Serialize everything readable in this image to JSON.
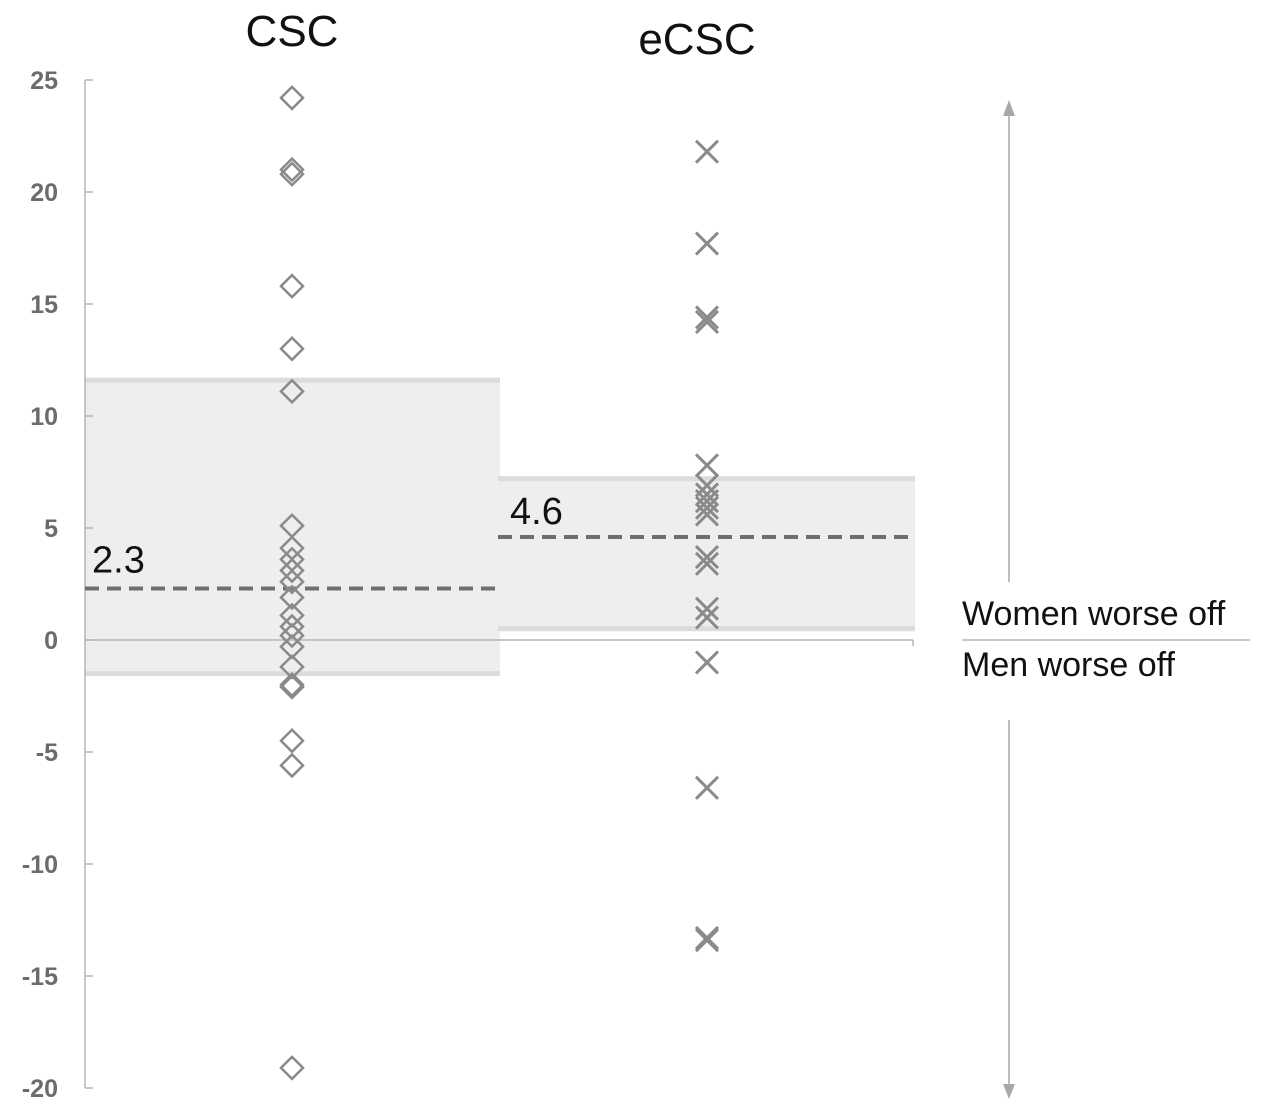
{
  "chart_data": {
    "type": "scatter",
    "ylim": [
      -20,
      25
    ],
    "yticks": [
      25,
      20,
      15,
      10,
      5,
      0,
      -5,
      -10,
      -15,
      -20
    ],
    "yticklabels": [
      "25",
      "20",
      "15",
      "10",
      "5",
      "0",
      "-5",
      "-10",
      "-15",
      "-20"
    ],
    "groups": [
      {
        "name": "CSC",
        "marker": "diamond",
        "mean": 2.3,
        "mean_label": "2.3",
        "band": [
          -1.5,
          11.6
        ],
        "values": [
          24.2,
          21.0,
          20.8,
          15.8,
          13.0,
          11.1,
          5.1,
          4.1,
          3.6,
          3.1,
          2.6,
          1.9,
          1.1,
          0.6,
          0.2,
          -0.3,
          -1.2,
          -2.0,
          -2.1,
          -4.5,
          -5.6,
          -19.1
        ]
      },
      {
        "name": "eCSC",
        "marker": "x",
        "mean": 4.6,
        "mean_label": "4.6",
        "band": [
          0.5,
          7.2
        ],
        "values": [
          21.8,
          17.7,
          14.4,
          14.2,
          7.8,
          6.9,
          6.5,
          6.2,
          5.9,
          5.6,
          3.7,
          3.4,
          1.4,
          1.0,
          -1.0,
          -6.6,
          -13.3,
          -13.4
        ]
      }
    ],
    "annotations": {
      "upper": "Women worse off",
      "lower": "Men worse off"
    },
    "colors": {
      "band": "#eeeeee",
      "band_edge": "#dcdcdc",
      "mean_line": "#6e6e6e",
      "marker": "#8a8a8a",
      "axis": "#b5b5b5",
      "arrow": "#a8a8a8"
    }
  }
}
